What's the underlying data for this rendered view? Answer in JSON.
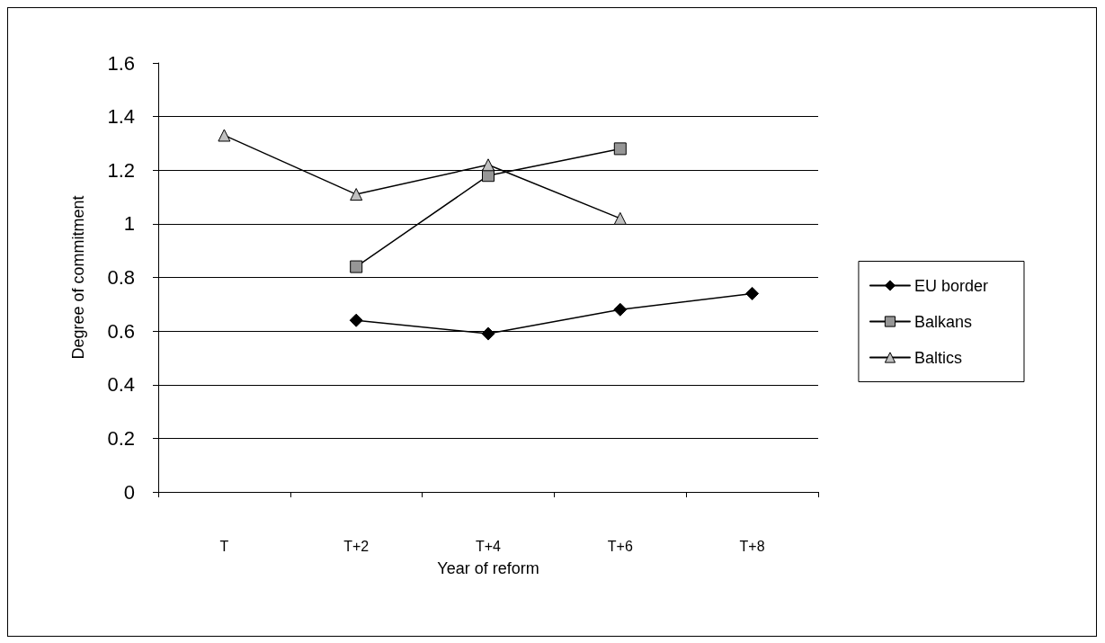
{
  "chart_data": {
    "type": "line",
    "xlabel": "Year of reform",
    "ylabel": "Degree of commitment",
    "categories": [
      "T",
      "T+2",
      "T+4",
      "T+6",
      "T+8"
    ],
    "series": [
      {
        "name": "EU border",
        "color": "#000000",
        "marker": "diamond",
        "values": [
          null,
          0.64,
          0.59,
          0.68,
          0.74
        ]
      },
      {
        "name": "Balkans",
        "color": "#969696",
        "marker": "square",
        "values": [
          null,
          0.84,
          1.18,
          1.28,
          null
        ]
      },
      {
        "name": "Baltics",
        "color": "#c0c0c0",
        "marker": "triangle",
        "values": [
          1.33,
          1.11,
          1.22,
          1.02,
          null
        ]
      }
    ],
    "ylim": [
      0,
      1.6
    ],
    "yticks": [
      0,
      0.2,
      0.4,
      0.6,
      0.8,
      1,
      1.2,
      1.4,
      1.6
    ],
    "grid": "y",
    "legend": "right",
    "line_style": "solid"
  }
}
